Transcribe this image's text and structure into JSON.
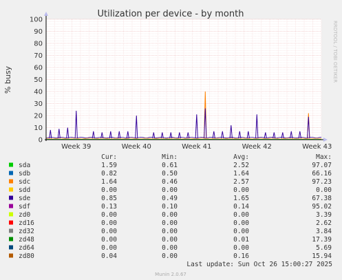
{
  "chart_data": {
    "type": "line",
    "title": "Utilization per device - by month",
    "ylabel": "% busy",
    "watermark": "RRDTOOL / TOBI OETIKER",
    "ylim": [
      0,
      100
    ],
    "y_ticks": [
      0,
      10,
      20,
      30,
      40,
      50,
      60,
      70,
      80,
      90,
      100
    ],
    "x_labels": [
      "Week 39",
      "Week 40",
      "Week 41",
      "Week 42",
      "Week 43"
    ],
    "grid": true,
    "columns": [
      "Cur:",
      "Min:",
      "Avg:",
      "Max:"
    ],
    "series": [
      {
        "name": "sda",
        "color": "#00cc00",
        "cur": "1.59",
        "min": "0.61",
        "avg": "2.52",
        "max": "97.07"
      },
      {
        "name": "sdb",
        "color": "#0066b3",
        "cur": "0.82",
        "min": "0.50",
        "avg": "1.64",
        "max": "66.16"
      },
      {
        "name": "sdc",
        "color": "#ff8000",
        "cur": "1.64",
        "min": "0.46",
        "avg": "2.57",
        "max": "97.23"
      },
      {
        "name": "sdd",
        "color": "#ffcc00",
        "cur": "0.00",
        "min": "0.00",
        "avg": "0.00",
        "max": "0.00"
      },
      {
        "name": "sde",
        "color": "#330099",
        "cur": "0.85",
        "min": "0.49",
        "avg": "1.65",
        "max": "67.38"
      },
      {
        "name": "sdf",
        "color": "#990099",
        "cur": "0.13",
        "min": "0.10",
        "avg": "0.14",
        "max": "95.02"
      },
      {
        "name": "zd0",
        "color": "#ccff00",
        "cur": "0.00",
        "min": "0.00",
        "avg": "0.00",
        "max": "3.39"
      },
      {
        "name": "zd16",
        "color": "#ff0000",
        "cur": "0.00",
        "min": "0.00",
        "avg": "0.00",
        "max": "2.62"
      },
      {
        "name": "zd32",
        "color": "#808080",
        "cur": "0.00",
        "min": "0.00",
        "avg": "0.00",
        "max": "3.84"
      },
      {
        "name": "zd48",
        "color": "#008f00",
        "cur": "0.00",
        "min": "0.00",
        "avg": "0.01",
        "max": "17.39"
      },
      {
        "name": "zd64",
        "color": "#00487d",
        "cur": "0.00",
        "min": "0.00",
        "avg": "0.00",
        "max": "5.69"
      },
      {
        "name": "zd80",
        "color": "#b35a00",
        "cur": "0.04",
        "min": "0.00",
        "avg": "0.16",
        "max": "15.94"
      }
    ],
    "spikes": [
      {
        "day": 0.5,
        "value": 8,
        "color": "#330099"
      },
      {
        "day": 1.5,
        "value": 9,
        "color": "#330099"
      },
      {
        "day": 2.5,
        "value": 10,
        "color": "#330099"
      },
      {
        "day": 3.5,
        "value": 24,
        "color": "#330099"
      },
      {
        "day": 5.5,
        "value": 7,
        "color": "#330099"
      },
      {
        "day": 6.5,
        "value": 6,
        "color": "#330099"
      },
      {
        "day": 7.5,
        "value": 7,
        "color": "#330099"
      },
      {
        "day": 8.5,
        "value": 7,
        "color": "#330099"
      },
      {
        "day": 9.5,
        "value": 7,
        "color": "#330099"
      },
      {
        "day": 10.5,
        "value": 20,
        "color": "#330099"
      },
      {
        "day": 12.5,
        "value": 6,
        "color": "#330099"
      },
      {
        "day": 13.5,
        "value": 6,
        "color": "#330099"
      },
      {
        "day": 14.5,
        "value": 6,
        "color": "#330099"
      },
      {
        "day": 15.5,
        "value": 6,
        "color": "#330099"
      },
      {
        "day": 16.5,
        "value": 6,
        "color": "#330099"
      },
      {
        "day": 17.5,
        "value": 21,
        "color": "#330099"
      },
      {
        "day": 18.5,
        "value": 40,
        "color": "#ff8000"
      },
      {
        "day": 18.5,
        "value": 26,
        "color": "#330099"
      },
      {
        "day": 19.5,
        "value": 7,
        "color": "#330099"
      },
      {
        "day": 20.5,
        "value": 7,
        "color": "#330099"
      },
      {
        "day": 21.5,
        "value": 12,
        "color": "#330099"
      },
      {
        "day": 22.5,
        "value": 7,
        "color": "#330099"
      },
      {
        "day": 23.5,
        "value": 7,
        "color": "#330099"
      },
      {
        "day": 24.5,
        "value": 21,
        "color": "#330099"
      },
      {
        "day": 25.5,
        "value": 6,
        "color": "#330099"
      },
      {
        "day": 26.5,
        "value": 6,
        "color": "#330099"
      },
      {
        "day": 27.5,
        "value": 6,
        "color": "#330099"
      },
      {
        "day": 28.5,
        "value": 7,
        "color": "#330099"
      },
      {
        "day": 29.5,
        "value": 7,
        "color": "#330099"
      },
      {
        "day": 30.5,
        "value": 22,
        "color": "#ff8000"
      },
      {
        "day": 30.5,
        "value": 19,
        "color": "#330099"
      }
    ]
  },
  "footer": {
    "last_update": "Last update: Sun Oct 26 15:00:27 2025",
    "version": "Munin 2.0.67"
  }
}
